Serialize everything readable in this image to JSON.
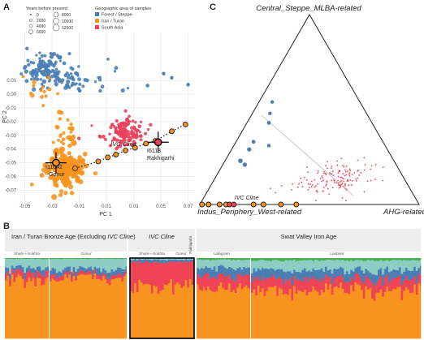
{
  "panels": {
    "a": {
      "letter": "A"
    },
    "b": {
      "letter": "B"
    },
    "c": {
      "letter": "C"
    }
  },
  "colors": {
    "forest_steppe": "#4a7fb5",
    "iran_turan": "#f7931e",
    "south_asia": "#e8435a",
    "anc_orange": "#f7931e",
    "anc_red": "#ee4455",
    "anc_blue": "#4a7fb5",
    "anc_teal": "#8ecdc4",
    "anc_green": "#4caf50",
    "grid": "#e6e6e6",
    "axis_text": "#555555"
  },
  "legends": {
    "size_title": "Years before present",
    "size_items": [
      "0",
      "2000",
      "4000",
      "6000",
      "8000",
      "10000",
      "12000"
    ],
    "area_title": "Geographic area of samples",
    "area_items": [
      "Forest / Steppe",
      "Iran / Turan",
      "South Asia"
    ]
  },
  "labels": {
    "ivc_cline": "IVC Cline",
    "i11042": "I11042",
    "gonur": "Gonur",
    "i6113": "I6113",
    "rakhigarhi": "Rakhigarhi",
    "vertex_top": "Central_Steppe_MLBA-related",
    "vertex_left": "Indus_Periphery_West-related",
    "vertex_right": "AHG-related",
    "b_group1_pre": "Iran / Turan Bronze Age (Excluding ",
    "b_group1_ital": "IVC Cline",
    "b_group1_post": ")",
    "b_group2": "IVC Cline",
    "b_group3": "Swat Valley Iron Age",
    "b_site_shahr1": "Shahr-i-Sokhta",
    "b_site_gonur1": "Gonur",
    "b_site_shahr2": "Shahr-i-Sokhta",
    "b_site_gonur2": "Gonur",
    "b_site_rakhi": "Rakhigarhi",
    "b_site_udegram": "Udegram",
    "b_site_loebanr": "Loebanr"
  },
  "chart_data": [
    {
      "type": "scatter",
      "xlabel": "PC 1",
      "ylabel": "PC 2",
      "xlim": [
        -0.055,
        0.075
      ],
      "ylim": [
        -0.078,
        0.045
      ],
      "xticks": [
        "-0.05",
        "-0.03",
        "-0.01",
        "0.01",
        "0.03",
        "0.05",
        "0.07"
      ],
      "yticks": [
        "0.01",
        "0.00",
        "-0.01",
        "-0.02",
        "-0.03",
        "-0.04",
        "-0.05",
        "-0.06",
        "-0.07"
      ],
      "xtick_values": [
        -0.05,
        -0.03,
        -0.01,
        0.01,
        0.03,
        0.05,
        0.07
      ],
      "ytick_values": [
        0.01,
        0.0,
        -0.01,
        -0.02,
        -0.03,
        -0.04,
        -0.05,
        -0.06,
        -0.07
      ],
      "cline_points": [
        [
          -0.013,
          -0.054
        ],
        [
          0.004,
          -0.049
        ],
        [
          0.011,
          -0.046
        ],
        [
          0.017,
          -0.044
        ],
        [
          0.024,
          -0.041
        ],
        [
          0.031,
          -0.039
        ],
        [
          0.039,
          -0.036
        ],
        [
          0.046,
          -0.034
        ],
        [
          0.058,
          -0.027
        ],
        [
          0.068,
          -0.022
        ]
      ],
      "highlight_i11042": [
        -0.027,
        -0.05
      ],
      "highlight_i6113": [
        0.048,
        -0.035
      ]
    },
    {
      "type": "scatter",
      "subtype": "ternary",
      "vertices": [
        "Central_Steppe_MLBA-related",
        "Indus_Periphery_West-related",
        "AHG-related"
      ],
      "cline_points_bottom_edge": [
        0.01,
        0.04,
        0.09,
        0.12,
        0.135,
        0.155,
        0.245,
        0.29,
        0.37,
        0.44
      ]
    },
    {
      "type": "bar",
      "subtype": "stacked-admixture",
      "components": [
        "orange",
        "red",
        "blue",
        "teal",
        "green"
      ]
    }
  ]
}
